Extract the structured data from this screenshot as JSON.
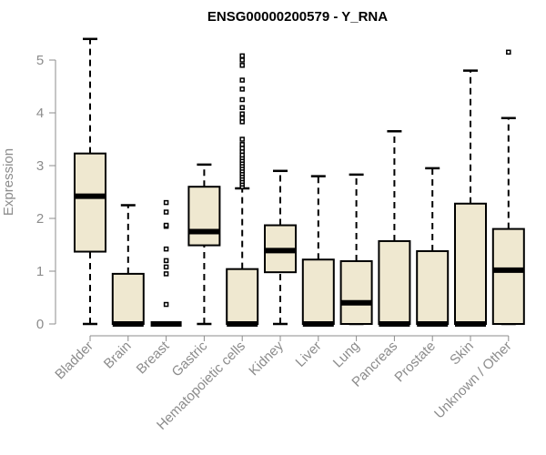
{
  "chart_data": {
    "type": "boxplot",
    "title": "ENSG00000200579 - Y_RNA",
    "ylabel": "Expression",
    "xlabel": "",
    "ylim": [
      0,
      5.4
    ],
    "yticks": [
      "0",
      "1",
      "2",
      "3",
      "4",
      "5"
    ],
    "grid": false,
    "box_color": "#efe8d0",
    "categories": [
      "Bladder",
      "Brain",
      "Breast",
      "Gastric",
      "Hematopoietic cells",
      "Kidney",
      "Liver",
      "Lung",
      "Pancreas",
      "Prostate",
      "Skin",
      "Unknown / Other"
    ],
    "boxes": [
      {
        "min": 0,
        "q1": 1.37,
        "median": 2.42,
        "q3": 3.23,
        "max": 5.4,
        "outliers": []
      },
      {
        "min": 0,
        "q1": 0,
        "median": 0,
        "q3": 0.95,
        "max": 2.25,
        "outliers": []
      },
      {
        "min": 0,
        "q1": 0,
        "median": 0,
        "q3": 0,
        "max": 0,
        "outliers": [
          0.37,
          0.95,
          1.08,
          1.2,
          1.42,
          1.85,
          1.87,
          2.12,
          2.3
        ]
      },
      {
        "min": 0,
        "q1": 1.49,
        "median": 1.75,
        "q3": 2.6,
        "max": 3.02,
        "outliers": []
      },
      {
        "min": 0,
        "q1": 0,
        "median": 0,
        "q3": 1.04,
        "max": 2.57,
        "outliers": [
          2.6,
          2.65,
          2.7,
          2.75,
          2.8,
          2.85,
          2.9,
          2.95,
          3.0,
          3.05,
          3.1,
          3.15,
          3.2,
          3.27,
          3.33,
          3.4,
          3.5,
          3.83,
          3.9,
          3.98,
          4.1,
          4.25,
          4.45,
          4.62,
          4.9,
          5.0,
          5.08
        ]
      },
      {
        "min": 0,
        "q1": 0.98,
        "median": 1.39,
        "q3": 1.87,
        "max": 2.9,
        "outliers": []
      },
      {
        "min": 0,
        "q1": 0,
        "median": 0,
        "q3": 1.22,
        "max": 2.8,
        "outliers": []
      },
      {
        "min": 0,
        "q1": 0,
        "median": 0.4,
        "q3": 1.19,
        "max": 2.83,
        "outliers": []
      },
      {
        "min": 0,
        "q1": 0,
        "median": 0,
        "q3": 1.57,
        "max": 3.65,
        "outliers": []
      },
      {
        "min": 0,
        "q1": 0,
        "median": 0,
        "q3": 1.38,
        "max": 2.95,
        "outliers": []
      },
      {
        "min": 0,
        "q1": 0,
        "median": 0,
        "q3": 2.28,
        "max": 4.8,
        "outliers": []
      },
      {
        "min": 0,
        "q1": 0,
        "median": 1.02,
        "q3": 1.8,
        "max": 3.9,
        "outliers": [
          5.15
        ]
      }
    ]
  }
}
